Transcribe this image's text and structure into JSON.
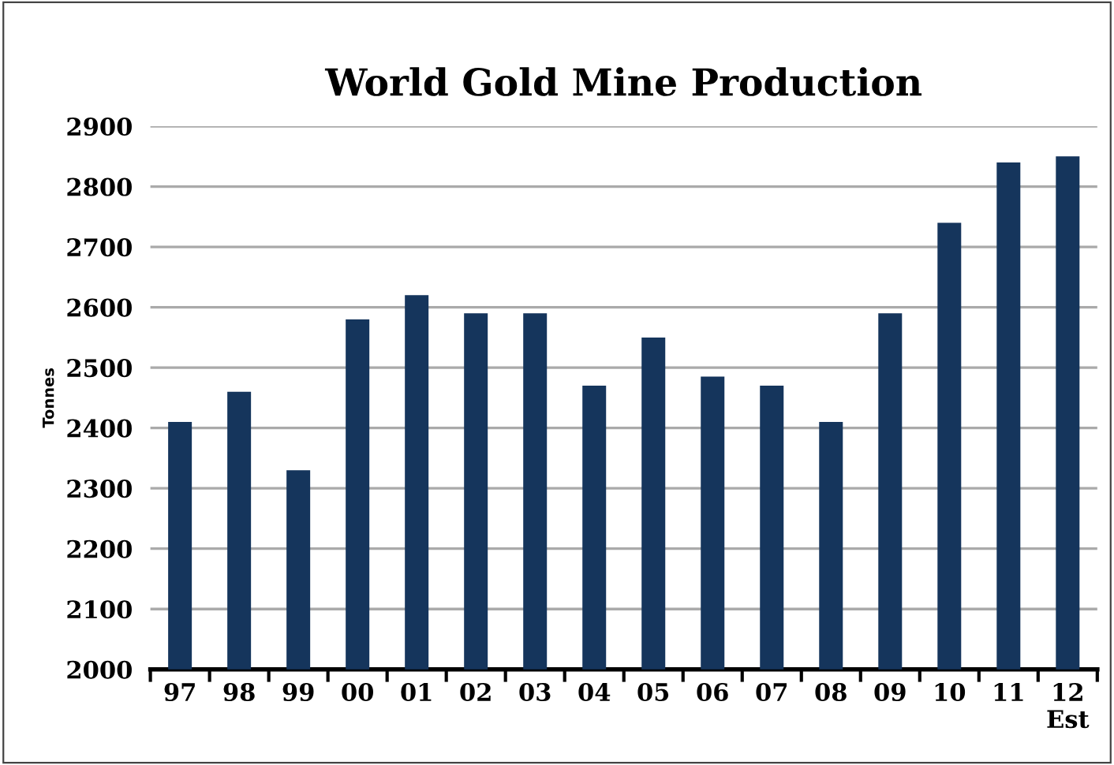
{
  "chart_data": {
    "type": "bar",
    "title": "World Gold Mine Production",
    "ylabel": "Tonnes",
    "categories": [
      "97",
      "98",
      "99",
      "00",
      "01",
      "02",
      "03",
      "04",
      "05",
      "06",
      "07",
      "08",
      "09",
      "10",
      "11",
      "12\nEst"
    ],
    "values": [
      2410,
      2460,
      2330,
      2580,
      2620,
      2590,
      2590,
      2470,
      2550,
      2485,
      2470,
      2410,
      2590,
      2740,
      2840,
      2850
    ],
    "color": "#15355c",
    "ylim": [
      2000,
      2900
    ],
    "yticks": [
      2000,
      2100,
      2200,
      2300,
      2400,
      2500,
      2600,
      2700,
      2800,
      2900
    ],
    "grid": "y",
    "legend": false
  }
}
